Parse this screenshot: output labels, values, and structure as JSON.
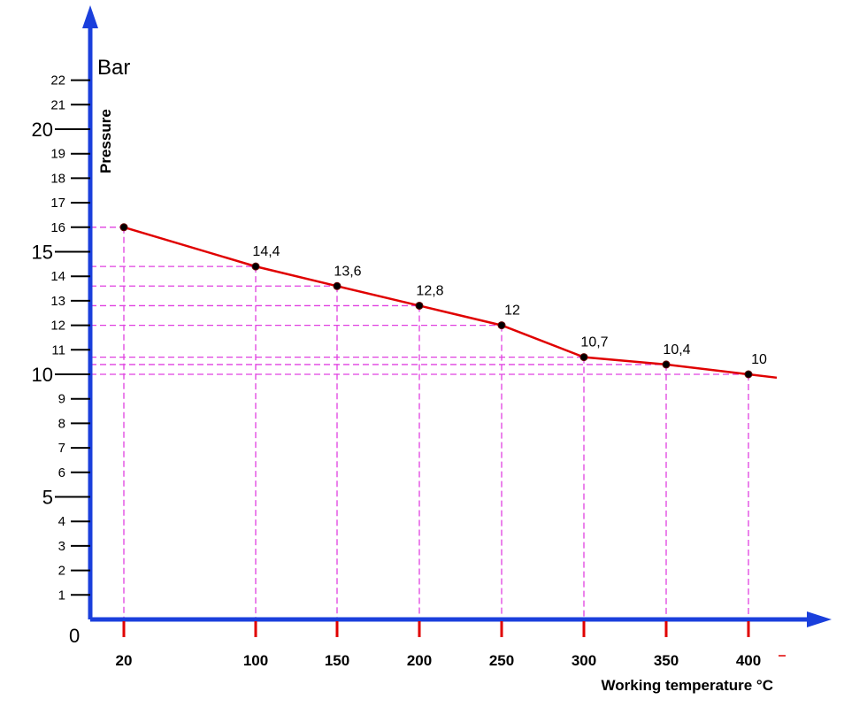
{
  "chart_data": {
    "type": "line",
    "title": "",
    "xlabel": "Working temperature °C",
    "ylabel": "Pressure",
    "y_unit": "Bar",
    "origin_label": "0",
    "x_ticks": [
      "20",
      "100",
      "150",
      "200",
      "250",
      "300",
      "350",
      "400"
    ],
    "y_ticks_small": [
      "1",
      "2",
      "3",
      "4",
      "6",
      "7",
      "8",
      "9",
      "11",
      "12",
      "13",
      "14",
      "16",
      "17",
      "18",
      "19",
      "21",
      "22"
    ],
    "y_ticks_big": [
      "5",
      "10",
      "15",
      "20"
    ],
    "ylim": [
      0,
      22
    ],
    "grid": "dashed guides to each point",
    "series": [
      {
        "x": [
          "20",
          "100",
          "150",
          "200",
          "250",
          "300",
          "350",
          "400"
        ],
        "values": [
          16,
          14.4,
          13.6,
          12.8,
          12,
          10.7,
          10.4,
          10
        ],
        "labels": [
          "",
          "14,4",
          "13,6",
          "12,8",
          "12",
          "10,7",
          "10,4",
          "10"
        ]
      }
    ],
    "colors": {
      "axis": "#1a3fdc",
      "line": "#e00000",
      "guide": "#e040e0",
      "tick": "#000000",
      "x_tick_mark": "#e00000",
      "point": "#000000"
    }
  }
}
